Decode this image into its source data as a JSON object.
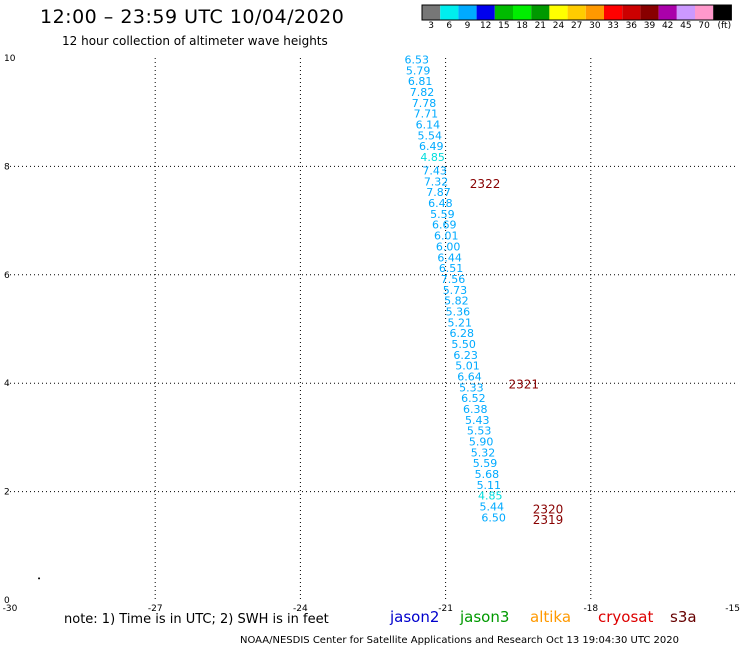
{
  "title": "12:00 – 23:59 UTC 10/04/2020",
  "subtitle": "12 hour collection of altimeter wave heights",
  "note": "note:  1) Time is in UTC; 2) SWH is in feet",
  "footer": "NOAA/NESDIS Center for Satellite Applications and Research    Oct 13 19:04:30 UTC 2020",
  "satellites": [
    {
      "name": "jason2",
      "color": "#0000cc"
    },
    {
      "name": "jason3",
      "color": "#009900"
    },
    {
      "name": "altika",
      "color": "#ff9900"
    },
    {
      "name": "cryosat",
      "color": "#dd0000"
    },
    {
      "name": "s3a",
      "color": "#660000"
    }
  ],
  "color_scale": {
    "labels": [
      "3",
      "6",
      "9",
      "12",
      "15",
      "18",
      "21",
      "24",
      "27",
      "30",
      "33",
      "36",
      "39",
      "42",
      "45",
      "70",
      "(ft)"
    ],
    "colors": [
      "#777777",
      "#00eeee",
      "#00aaff",
      "#0000ee",
      "#00bb00",
      "#00ee00",
      "#009900",
      "#ffff00",
      "#ffcc00",
      "#ff9900",
      "#ff0000",
      "#cc0000",
      "#880000",
      "#aa00aa",
      "#cc99ff",
      "#ff99cc",
      "#000000"
    ]
  },
  "chart_data": {
    "type": "scatter",
    "title": "12:00 – 23:59 UTC 10/04/2020",
    "subtitle": "12 hour collection of altimeter wave heights",
    "xlabel": "",
    "ylabel": "",
    "xlim": [
      -30,
      -15
    ],
    "ylim": [
      0,
      10
    ],
    "xticks": [
      "-30",
      "-27",
      "-24",
      "-21",
      "-18",
      "-15"
    ],
    "xtick_values": [
      -30,
      -27,
      -24,
      -21,
      -18,
      -15
    ],
    "yticks": [
      "0",
      "2",
      "4",
      "6",
      "8",
      "10"
    ],
    "ytick_values": [
      0,
      2,
      4,
      6,
      8,
      10
    ],
    "grid": true,
    "points": [
      {
        "x": -21.85,
        "y": 9.9,
        "label": "6.53",
        "color": "#00aaff"
      },
      {
        "x": -21.82,
        "y": 9.7,
        "label": "5.79",
        "color": "#00aaff"
      },
      {
        "x": -21.78,
        "y": 9.5,
        "label": "6.81",
        "color": "#00aaff"
      },
      {
        "x": -21.74,
        "y": 9.3,
        "label": "7.82",
        "color": "#00aaff"
      },
      {
        "x": -21.7,
        "y": 9.1,
        "label": "7.78",
        "color": "#00aaff"
      },
      {
        "x": -21.66,
        "y": 8.9,
        "label": "7.71",
        "color": "#00aaff"
      },
      {
        "x": -21.62,
        "y": 8.7,
        "label": "6.14",
        "color": "#00aaff"
      },
      {
        "x": -21.58,
        "y": 8.5,
        "label": "5.54",
        "color": "#00aaff"
      },
      {
        "x": -21.55,
        "y": 8.3,
        "label": "6.49",
        "color": "#00aaff"
      },
      {
        "x": -21.52,
        "y": 8.1,
        "label": "4.85",
        "color": "#00dddd"
      },
      {
        "x": -21.48,
        "y": 7.85,
        "label": "7.43",
        "color": "#00aaff"
      },
      {
        "x": -21.45,
        "y": 7.65,
        "label": "7.32",
        "color": "#00aaff"
      },
      {
        "x": -21.4,
        "y": 7.45,
        "label": "7.87",
        "color": "#00aaff"
      },
      {
        "x": -21.36,
        "y": 7.25,
        "label": "6.48",
        "color": "#00aaff"
      },
      {
        "x": -21.32,
        "y": 7.05,
        "label": "5.59",
        "color": "#00aaff"
      },
      {
        "x": -21.28,
        "y": 6.85,
        "label": "6.69",
        "color": "#00aaff"
      },
      {
        "x": -21.24,
        "y": 6.65,
        "label": "6.01",
        "color": "#00aaff"
      },
      {
        "x": -21.2,
        "y": 6.45,
        "label": "6.00",
        "color": "#00aaff"
      },
      {
        "x": -21.17,
        "y": 6.25,
        "label": "6.44",
        "color": "#00aaff"
      },
      {
        "x": -21.14,
        "y": 6.05,
        "label": "6.51",
        "color": "#00aaff"
      },
      {
        "x": -21.1,
        "y": 5.85,
        "label": "7.56",
        "color": "#00aaff"
      },
      {
        "x": -21.06,
        "y": 5.65,
        "label": "5.73",
        "color": "#00aaff"
      },
      {
        "x": -21.03,
        "y": 5.45,
        "label": "5.82",
        "color": "#00aaff"
      },
      {
        "x": -21.0,
        "y": 5.25,
        "label": "5.36",
        "color": "#00aaff"
      },
      {
        "x": -20.96,
        "y": 5.05,
        "label": "5.21",
        "color": "#00aaff"
      },
      {
        "x": -20.92,
        "y": 4.85,
        "label": "6.28",
        "color": "#00aaff"
      },
      {
        "x": -20.88,
        "y": 4.65,
        "label": "5.50",
        "color": "#00aaff"
      },
      {
        "x": -20.84,
        "y": 4.45,
        "label": "6.23",
        "color": "#00aaff"
      },
      {
        "x": -20.8,
        "y": 4.25,
        "label": "5.01",
        "color": "#00aaff"
      },
      {
        "x": -20.76,
        "y": 4.05,
        "label": "6.64",
        "color": "#00aaff"
      },
      {
        "x": -20.72,
        "y": 3.85,
        "label": "5.33",
        "color": "#00aaff"
      },
      {
        "x": -20.68,
        "y": 3.65,
        "label": "6.52",
        "color": "#00aaff"
      },
      {
        "x": -20.64,
        "y": 3.45,
        "label": "6.38",
        "color": "#00aaff"
      },
      {
        "x": -20.6,
        "y": 3.25,
        "label": "5.43",
        "color": "#00aaff"
      },
      {
        "x": -20.56,
        "y": 3.05,
        "label": "5.53",
        "color": "#00aaff"
      },
      {
        "x": -20.52,
        "y": 2.85,
        "label": "5.90",
        "color": "#00aaff"
      },
      {
        "x": -20.48,
        "y": 2.65,
        "label": "5.32",
        "color": "#00aaff"
      },
      {
        "x": -20.44,
        "y": 2.45,
        "label": "5.59",
        "color": "#00aaff"
      },
      {
        "x": -20.4,
        "y": 2.25,
        "label": "5.68",
        "color": "#00aaff"
      },
      {
        "x": -20.36,
        "y": 2.05,
        "label": "5.11",
        "color": "#00aaff"
      },
      {
        "x": -20.33,
        "y": 1.85,
        "label": "4.85",
        "color": "#00dddd"
      },
      {
        "x": -20.3,
        "y": 1.65,
        "label": "5.44",
        "color": "#00aaff"
      },
      {
        "x": -20.26,
        "y": 1.45,
        "label": "6.50",
        "color": "#00aaff"
      }
    ],
    "time_labels": [
      {
        "x": -20.5,
        "y": 7.6,
        "label": "2322",
        "color": "#880000"
      },
      {
        "x": -19.7,
        "y": 3.9,
        "label": "2321",
        "color": "#880000"
      },
      {
        "x": -19.2,
        "y": 1.6,
        "label": "2320",
        "color": "#880000"
      },
      {
        "x": -19.2,
        "y": 1.4,
        "label": "2319",
        "color": "#880000"
      }
    ],
    "markers": [
      {
        "x": -29.4,
        "y": 0.4
      }
    ]
  }
}
